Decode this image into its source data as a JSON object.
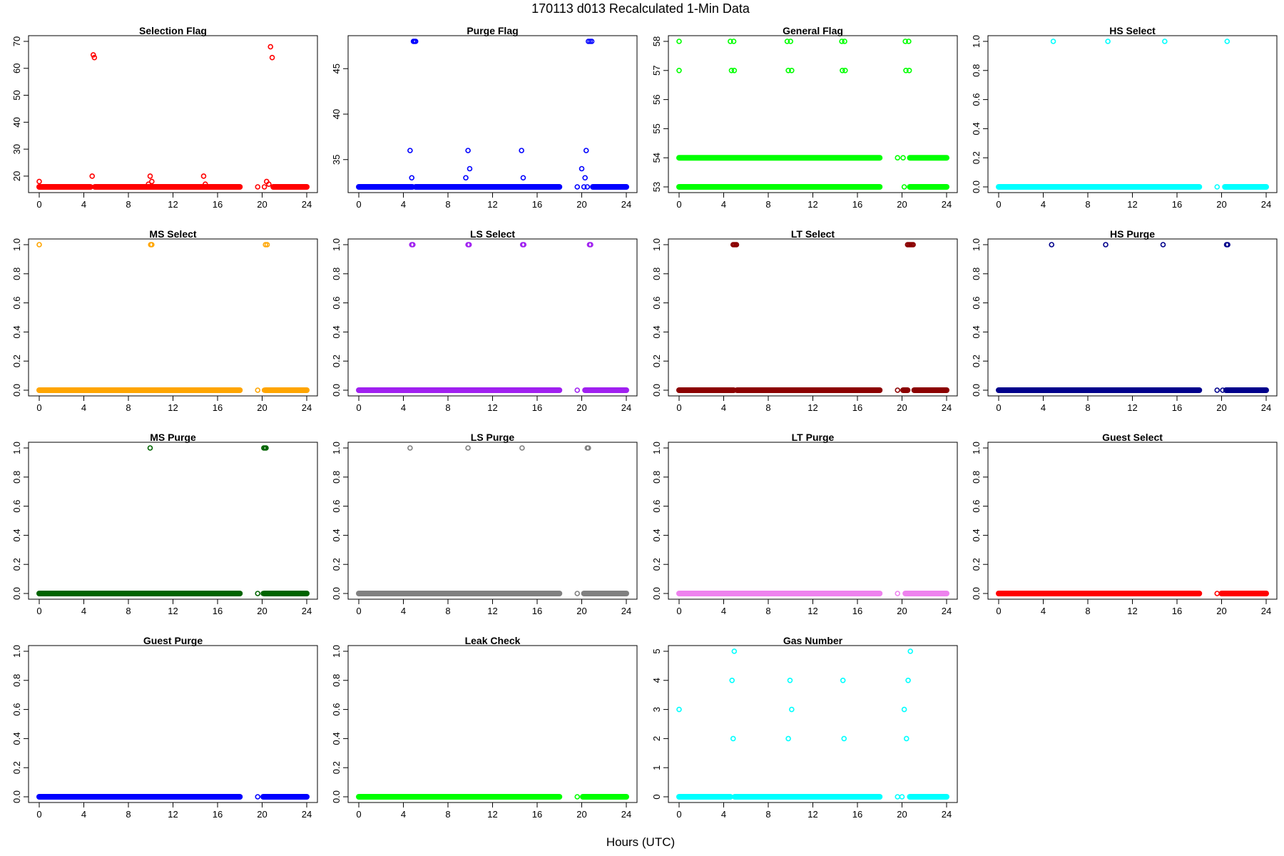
{
  "figure": {
    "title": "170113   d013   Recalculated 1-Min Data",
    "xlabel": "Hours (UTC)"
  },
  "chart_data": [
    {
      "type": "scatter",
      "title": "Selection Flag",
      "color": "#ff0000",
      "xlim": [
        0,
        24
      ],
      "ylim": [
        16,
        70
      ],
      "xticks": [
        0,
        4,
        8,
        12,
        16,
        20,
        24
      ],
      "yticks": [
        20,
        30,
        40,
        50,
        60,
        70
      ],
      "baseline": [
        {
          "from": 0,
          "to": 4.6,
          "y": 16
        },
        {
          "from": 5.0,
          "to": 18.0,
          "y": 16
        },
        {
          "from": 21.0,
          "to": 24.0,
          "y": 16
        }
      ],
      "points": [
        [
          0,
          18
        ],
        [
          4.75,
          20
        ],
        [
          4.85,
          65
        ],
        [
          4.95,
          64
        ],
        [
          9.8,
          17
        ],
        [
          9.95,
          20
        ],
        [
          10.1,
          18
        ],
        [
          14.75,
          20
        ],
        [
          14.9,
          17
        ],
        [
          19.6,
          16
        ],
        [
          20.2,
          16
        ],
        [
          20.4,
          18
        ],
        [
          20.6,
          17
        ],
        [
          20.75,
          68
        ],
        [
          20.9,
          64
        ]
      ]
    },
    {
      "type": "scatter",
      "title": "Purge Flag",
      "color": "#0000ff",
      "xlim": [
        0,
        24
      ],
      "ylim": [
        32,
        48
      ],
      "xticks": [
        0,
        4,
        8,
        12,
        16,
        20,
        24
      ],
      "yticks": [
        35,
        40,
        45
      ],
      "baseline": [
        {
          "from": 0,
          "to": 4.8,
          "y": 32
        },
        {
          "from": 5.1,
          "to": 18.0,
          "y": 32
        },
        {
          "from": 21.0,
          "to": 24.0,
          "y": 32
        }
      ],
      "points": [
        [
          4.6,
          36
        ],
        [
          4.75,
          33
        ],
        [
          4.9,
          48
        ],
        [
          5.0,
          48
        ],
        [
          5.1,
          48
        ],
        [
          9.6,
          33
        ],
        [
          9.8,
          36
        ],
        [
          9.95,
          34
        ],
        [
          14.6,
          36
        ],
        [
          14.75,
          33
        ],
        [
          19.6,
          32
        ],
        [
          20.0,
          34
        ],
        [
          20.2,
          32
        ],
        [
          20.3,
          33
        ],
        [
          20.4,
          36
        ],
        [
          20.5,
          32
        ],
        [
          20.6,
          48
        ],
        [
          20.75,
          48
        ],
        [
          20.9,
          48
        ]
      ]
    },
    {
      "type": "scatter",
      "title": "General Flag",
      "color": "#00ff00",
      "xlim": [
        0,
        24
      ],
      "ylim": [
        53,
        58
      ],
      "xticks": [
        0,
        4,
        8,
        12,
        16,
        20,
        24
      ],
      "yticks": [
        53,
        54,
        55,
        56,
        57,
        58
      ],
      "baseline": [
        {
          "from": 0,
          "to": 18.0,
          "y": 53
        },
        {
          "from": 0,
          "to": 18.0,
          "y": 54
        },
        {
          "from": 20.7,
          "to": 24.0,
          "y": 53
        },
        {
          "from": 20.7,
          "to": 24.0,
          "y": 54
        }
      ],
      "points": [
        [
          0,
          58
        ],
        [
          0,
          57
        ],
        [
          4.6,
          58
        ],
        [
          4.9,
          58
        ],
        [
          4.7,
          57
        ],
        [
          4.95,
          57
        ],
        [
          9.7,
          58
        ],
        [
          10.0,
          58
        ],
        [
          9.8,
          57
        ],
        [
          10.1,
          57
        ],
        [
          14.6,
          58
        ],
        [
          14.85,
          58
        ],
        [
          14.65,
          57
        ],
        [
          14.9,
          57
        ],
        [
          19.6,
          54
        ],
        [
          20.1,
          54
        ],
        [
          20.2,
          53
        ],
        [
          20.3,
          58
        ],
        [
          20.6,
          58
        ],
        [
          20.35,
          57
        ],
        [
          20.65,
          57
        ]
      ]
    },
    {
      "type": "scatter",
      "title": "HS Select",
      "color": "#00ffff",
      "xlim": [
        0,
        24
      ],
      "ylim": [
        0,
        1
      ],
      "xticks": [
        0,
        4,
        8,
        12,
        16,
        20,
        24
      ],
      "yticks": [
        0.0,
        0.2,
        0.4,
        0.6,
        0.8,
        1.0
      ],
      "baseline": [
        {
          "from": 0,
          "to": 18.0,
          "y": 0
        },
        {
          "from": 20.3,
          "to": 24.0,
          "y": 0
        }
      ],
      "points": [
        [
          4.9,
          1
        ],
        [
          9.8,
          1
        ],
        [
          14.9,
          1
        ],
        [
          19.6,
          0
        ],
        [
          20.5,
          1
        ]
      ]
    },
    {
      "type": "scatter",
      "title": "MS Select",
      "color": "#ffa500",
      "xlim": [
        0,
        24
      ],
      "ylim": [
        0,
        1
      ],
      "xticks": [
        0,
        4,
        8,
        12,
        16,
        20,
        24
      ],
      "yticks": [
        0.0,
        0.2,
        0.4,
        0.6,
        0.8,
        1.0
      ],
      "baseline": [
        {
          "from": 0,
          "to": 18.0,
          "y": 0
        },
        {
          "from": 20.3,
          "to": 24.0,
          "y": 0
        }
      ],
      "points": [
        [
          0,
          1
        ],
        [
          10.0,
          1
        ],
        [
          10.1,
          1
        ],
        [
          19.6,
          0
        ],
        [
          20.2,
          0
        ],
        [
          20.3,
          1
        ],
        [
          20.45,
          1
        ]
      ]
    },
    {
      "type": "scatter",
      "title": "LS Select",
      "color": "#a020f0",
      "xlim": [
        0,
        24
      ],
      "ylim": [
        0,
        1
      ],
      "xticks": [
        0,
        4,
        8,
        12,
        16,
        20,
        24
      ],
      "yticks": [
        0.0,
        0.2,
        0.4,
        0.6,
        0.8,
        1.0
      ],
      "baseline": [
        {
          "from": 0,
          "to": 18.0,
          "y": 0
        },
        {
          "from": 20.3,
          "to": 24.0,
          "y": 0
        }
      ],
      "points": [
        [
          4.75,
          1
        ],
        [
          4.85,
          1
        ],
        [
          9.8,
          1
        ],
        [
          9.9,
          1
        ],
        [
          14.7,
          1
        ],
        [
          14.8,
          1
        ],
        [
          19.6,
          0
        ],
        [
          20.7,
          1
        ],
        [
          20.8,
          1
        ]
      ]
    },
    {
      "type": "scatter",
      "title": "LT Select",
      "color": "#8b0000",
      "xlim": [
        0,
        24
      ],
      "ylim": [
        0,
        1
      ],
      "xticks": [
        0,
        4,
        8,
        12,
        16,
        20,
        24
      ],
      "yticks": [
        0.0,
        0.2,
        0.4,
        0.6,
        0.8,
        1.0
      ],
      "baseline": [
        {
          "from": 0,
          "to": 4.9,
          "y": 0
        },
        {
          "from": 5.2,
          "to": 18.0,
          "y": 0
        },
        {
          "from": 20.1,
          "to": 20.5,
          "y": 0
        },
        {
          "from": 21.1,
          "to": 24.0,
          "y": 0
        }
      ],
      "points": [
        [
          4.85,
          1
        ],
        [
          4.95,
          1
        ],
        [
          5.05,
          1
        ],
        [
          5.15,
          1
        ],
        [
          19.6,
          0
        ],
        [
          20.5,
          1
        ],
        [
          20.6,
          1
        ],
        [
          20.7,
          1
        ],
        [
          20.8,
          1
        ],
        [
          20.9,
          1
        ],
        [
          21.0,
          1
        ]
      ]
    },
    {
      "type": "scatter",
      "title": "HS Purge",
      "color": "#00008b",
      "xlim": [
        0,
        24
      ],
      "ylim": [
        0,
        1
      ],
      "xticks": [
        0,
        4,
        8,
        12,
        16,
        20,
        24
      ],
      "yticks": [
        0.0,
        0.2,
        0.4,
        0.6,
        0.8,
        1.0
      ],
      "baseline": [
        {
          "from": 0,
          "to": 18.0,
          "y": 0
        },
        {
          "from": 20.4,
          "to": 24.0,
          "y": 0
        }
      ],
      "points": [
        [
          4.75,
          1
        ],
        [
          9.6,
          1
        ],
        [
          14.75,
          1
        ],
        [
          19.6,
          0
        ],
        [
          20.1,
          0
        ],
        [
          20.45,
          1
        ],
        [
          20.55,
          1
        ]
      ]
    },
    {
      "type": "scatter",
      "title": "MS Purge",
      "color": "#006400",
      "xlim": [
        0,
        24
      ],
      "ylim": [
        0,
        1
      ],
      "xticks": [
        0,
        4,
        8,
        12,
        16,
        20,
        24
      ],
      "yticks": [
        0.0,
        0.2,
        0.4,
        0.6,
        0.8,
        1.0
      ],
      "baseline": [
        {
          "from": 0,
          "to": 18.0,
          "y": 0
        },
        {
          "from": 20.2,
          "to": 24.0,
          "y": 0
        }
      ],
      "points": [
        [
          9.95,
          1
        ],
        [
          19.6,
          0
        ],
        [
          20.1,
          0
        ],
        [
          20.15,
          1
        ],
        [
          20.25,
          1
        ],
        [
          20.35,
          1
        ]
      ]
    },
    {
      "type": "scatter",
      "title": "LS Purge",
      "color": "#808080",
      "xlim": [
        0,
        24
      ],
      "ylim": [
        0,
        1
      ],
      "xticks": [
        0,
        4,
        8,
        12,
        16,
        20,
        24
      ],
      "yticks": [
        0.0,
        0.2,
        0.4,
        0.6,
        0.8,
        1.0
      ],
      "baseline": [
        {
          "from": 0,
          "to": 18.0,
          "y": 0
        },
        {
          "from": 20.2,
          "to": 24.0,
          "y": 0
        }
      ],
      "points": [
        [
          4.6,
          1
        ],
        [
          9.8,
          1
        ],
        [
          14.65,
          1
        ],
        [
          19.6,
          0
        ],
        [
          20.5,
          1
        ],
        [
          20.6,
          1
        ]
      ]
    },
    {
      "type": "scatter",
      "title": "LT Purge",
      "color": "#ee82ee",
      "xlim": [
        0,
        24
      ],
      "ylim": [
        0,
        1
      ],
      "xticks": [
        0,
        4,
        8,
        12,
        16,
        20,
        24
      ],
      "yticks": [
        0.0,
        0.2,
        0.4,
        0.6,
        0.8,
        1.0
      ],
      "baseline": [
        {
          "from": 0,
          "to": 18.0,
          "y": 0
        },
        {
          "from": 20.3,
          "to": 24.0,
          "y": 0
        }
      ],
      "points": [
        [
          19.6,
          0
        ]
      ]
    },
    {
      "type": "scatter",
      "title": "Guest Select",
      "color": "#ff0000",
      "xlim": [
        0,
        24
      ],
      "ylim": [
        0,
        1
      ],
      "xticks": [
        0,
        4,
        8,
        12,
        16,
        20,
        24
      ],
      "yticks": [
        0.0,
        0.2,
        0.4,
        0.6,
        0.8,
        1.0
      ],
      "baseline": [
        {
          "from": 0,
          "to": 18.0,
          "y": 0
        },
        {
          "from": 20.0,
          "to": 24.0,
          "y": 0
        }
      ],
      "points": [
        [
          19.6,
          0
        ]
      ]
    },
    {
      "type": "scatter",
      "title": "Guest Purge",
      "color": "#0000ff",
      "xlim": [
        0,
        24
      ],
      "ylim": [
        0,
        1
      ],
      "xticks": [
        0,
        4,
        8,
        12,
        16,
        20,
        24
      ],
      "yticks": [
        0.0,
        0.2,
        0.4,
        0.6,
        0.8,
        1.0
      ],
      "baseline": [
        {
          "from": 0,
          "to": 18.0,
          "y": 0
        },
        {
          "from": 20.1,
          "to": 24.0,
          "y": 0
        }
      ],
      "points": [
        [
          19.6,
          0
        ]
      ]
    },
    {
      "type": "scatter",
      "title": "Leak Check",
      "color": "#00ff00",
      "xlim": [
        0,
        24
      ],
      "ylim": [
        0,
        1
      ],
      "xticks": [
        0,
        4,
        8,
        12,
        16,
        20,
        24
      ],
      "yticks": [
        0.0,
        0.2,
        0.4,
        0.6,
        0.8,
        1.0
      ],
      "baseline": [
        {
          "from": 0,
          "to": 18.0,
          "y": 0
        },
        {
          "from": 20.1,
          "to": 24.0,
          "y": 0
        }
      ],
      "points": [
        [
          19.6,
          0
        ]
      ]
    },
    {
      "type": "scatter",
      "title": "Gas Number",
      "color": "#00ffff",
      "xlim": [
        0,
        24
      ],
      "ylim": [
        0,
        5
      ],
      "xticks": [
        0,
        4,
        8,
        12,
        16,
        20,
        24
      ],
      "yticks": [
        0,
        1,
        2,
        3,
        4,
        5
      ],
      "baseline": [
        {
          "from": 0,
          "to": 4.6,
          "y": 0
        },
        {
          "from": 5.0,
          "to": 18.0,
          "y": 0
        },
        {
          "from": 20.7,
          "to": 24.0,
          "y": 0
        }
      ],
      "points": [
        [
          0,
          3
        ],
        [
          4.75,
          4
        ],
        [
          4.85,
          2
        ],
        [
          4.95,
          5
        ],
        [
          9.8,
          2
        ],
        [
          9.95,
          4
        ],
        [
          10.1,
          3
        ],
        [
          14.7,
          4
        ],
        [
          14.8,
          2
        ],
        [
          19.6,
          0
        ],
        [
          20.0,
          0
        ],
        [
          20.2,
          3
        ],
        [
          20.4,
          2
        ],
        [
          20.55,
          4
        ],
        [
          20.75,
          5
        ]
      ]
    }
  ]
}
